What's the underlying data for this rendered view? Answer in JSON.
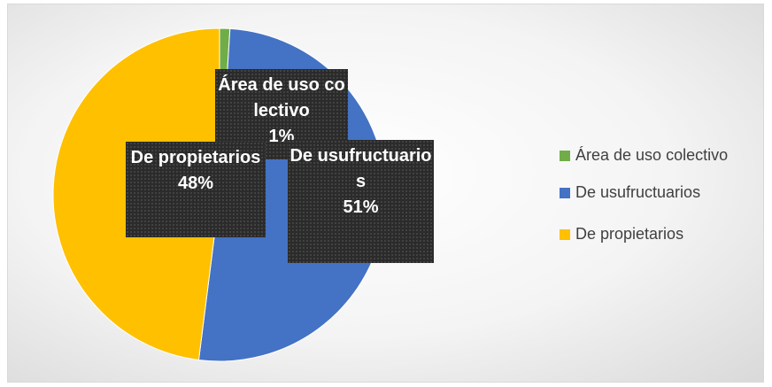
{
  "chart_data": {
    "type": "pie",
    "categories": [
      "Área de uso colectivo",
      "De usufructuarios",
      "De propietarios"
    ],
    "values": [
      1,
      51,
      48
    ],
    "value_labels": [
      "1%",
      "51%",
      "48%"
    ],
    "colors": [
      "#70ad47",
      "#4472c4",
      "#ffc000"
    ],
    "legend": "right"
  }
}
